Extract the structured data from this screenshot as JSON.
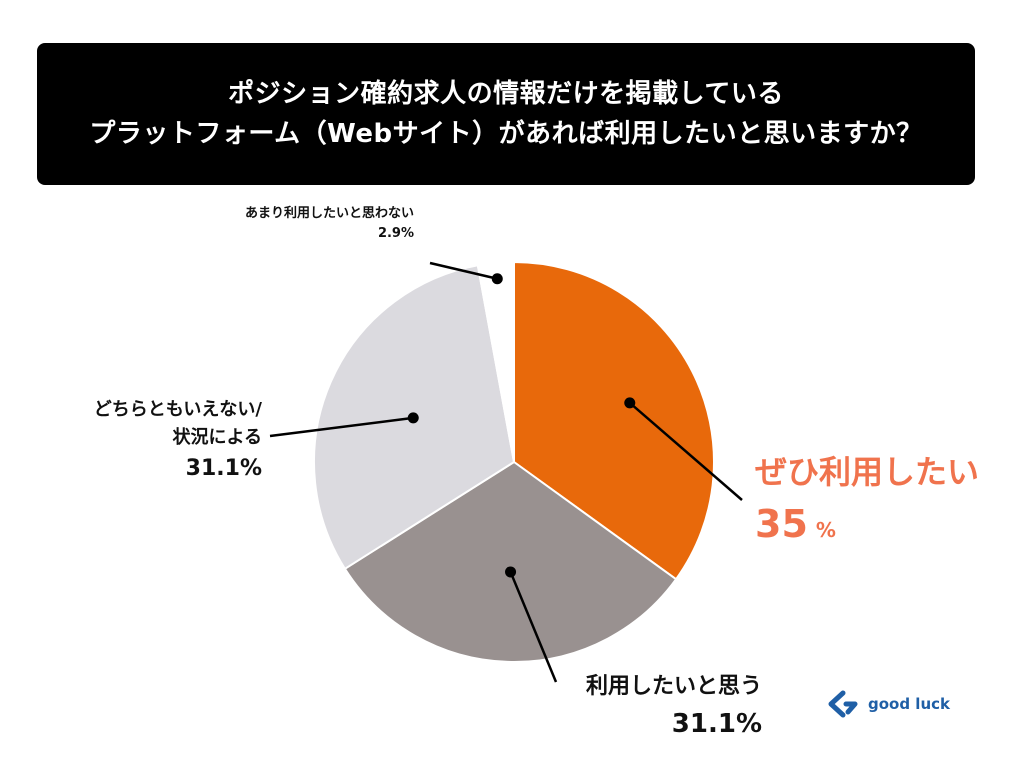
{
  "title": {
    "line1": "ポジション確約求人の情報だけを掲載している",
    "line2": "プラットフォーム（Webサイト）があれば利用したいと思いますか？"
  },
  "colors": {
    "accent": "#e8690b",
    "accent_text": "#f0734d",
    "mid_gray": "#999190",
    "light_gray": "#dbdadf",
    "white_slice": "#ffffff",
    "leader": "#000000",
    "logo_blue": "#1f5fa6"
  },
  "chart_data": {
    "type": "pie",
    "slices": [
      {
        "label": "ぜひ利用したい",
        "value": 35,
        "value_text": "35",
        "unit": "%",
        "color": "#e8690b"
      },
      {
        "label": "利用したいと思う",
        "value": 31.1,
        "value_text": "31.1%",
        "color": "#999190"
      },
      {
        "label_line1": "どちらともいえない/",
        "label_line2": "状況による",
        "value": 31.1,
        "value_text": "31.1%",
        "color": "#dbdadf"
      },
      {
        "label": "あまり利用したいと思わない",
        "value": 2.9,
        "value_text": "2.9%",
        "color": "#ffffff"
      }
    ]
  },
  "logo": {
    "text": "good luck",
    "icon": "good-luck-logo-icon"
  }
}
